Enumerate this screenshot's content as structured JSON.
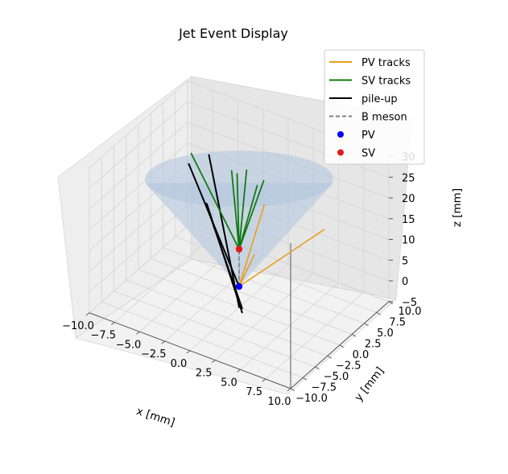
{
  "chart_data": {
    "type": "3d-line",
    "title": "Jet Event Display",
    "xlabel": "x [mm]",
    "ylabel": "y [mm]",
    "zlabel": "z [mm]",
    "xlim": [
      -10,
      10
    ],
    "ylim": [
      -10,
      10
    ],
    "zlim": [
      -5,
      30
    ],
    "xticks": [
      "−10.0",
      "−7.5",
      "−5.0",
      "−2.5",
      "0.0",
      "2.5",
      "5.0",
      "7.5",
      "10.0"
    ],
    "yticks": [
      "−10.0",
      "−7.5",
      "−5.0",
      "−2.5",
      "0.0",
      "2.5",
      "5.0",
      "7.5",
      "10.0"
    ],
    "zticks": [
      "−5",
      "0",
      "5",
      "10",
      "15",
      "20",
      "25",
      "30"
    ],
    "legend_position": "top-right",
    "legend": [
      {
        "label": "PV tracks",
        "kind": "line",
        "color": "#e69f1f"
      },
      {
        "label": "SV tracks",
        "kind": "line",
        "color": "#117a11"
      },
      {
        "label": "pile-up",
        "kind": "line",
        "color": "#000000"
      },
      {
        "label": "B meson",
        "kind": "dashed",
        "color": "#808080"
      },
      {
        "label": "PV",
        "kind": "point",
        "color": "#0000ff"
      },
      {
        "label": "SV",
        "kind": "point",
        "color": "#e31a1c"
      }
    ],
    "cone": {
      "apex": [
        0,
        0,
        0
      ],
      "axis_height": 25,
      "radius_at_top": 8.5,
      "color": "#b0c4de"
    },
    "points": {
      "PV": [
        0,
        0,
        0
      ],
      "SV": [
        0,
        0,
        9
      ]
    },
    "B_meson": {
      "from": [
        0,
        0,
        0
      ],
      "to": [
        0,
        0,
        9
      ]
    },
    "pv_tracks": [
      {
        "from": [
          0,
          0,
          0
        ],
        "to": [
          2.5,
          0,
          22
        ]
      },
      {
        "from": [
          0,
          0,
          0
        ],
        "to": [
          7,
          3,
          17
        ]
      },
      {
        "from": [
          0,
          0,
          0
        ],
        "to": [
          1.5,
          0,
          9
        ]
      }
    ],
    "sv_tracks": [
      {
        "from": [
          0,
          0,
          9
        ],
        "to": [
          -5,
          0.5,
          27
        ]
      },
      {
        "from": [
          0,
          0,
          9
        ],
        "to": [
          -0.5,
          -0.5,
          28
        ]
      },
      {
        "from": [
          0,
          0,
          9
        ],
        "to": [
          -0.2,
          0,
          27
        ]
      },
      {
        "from": [
          0,
          0,
          9
        ],
        "to": [
          0.5,
          0.5,
          28
        ]
      },
      {
        "from": [
          0,
          0,
          9
        ],
        "to": [
          1.8,
          0,
          26
        ]
      },
      {
        "from": [
          0,
          0,
          9
        ],
        "to": [
          2.2,
          0.5,
          27
        ]
      }
    ],
    "pileup_tracks": [
      {
        "from": [
          0,
          0,
          0
        ],
        "to": [
          -5,
          0,
          25
        ]
      },
      {
        "from": [
          0.3,
          0,
          -5
        ],
        "to": [
          -3.3,
          0,
          17
        ]
      },
      {
        "from": [
          0.3,
          0,
          -6
        ],
        "to": [
          -3.2,
          0,
          17
        ]
      },
      {
        "from": [
          0,
          0,
          -5
        ],
        "to": [
          -3,
          0,
          29
        ]
      }
    ]
  }
}
